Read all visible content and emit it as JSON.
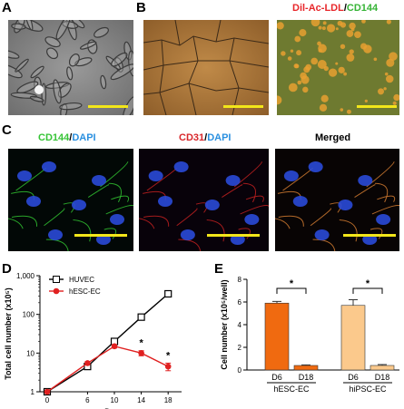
{
  "panel_labels": {
    "a": "A",
    "b": "B",
    "c": "C",
    "d": "D",
    "e": "E"
  },
  "titles": {
    "b_right": {
      "red": "Dil-Ac-LDL",
      "slash": "/",
      "green": "CD144"
    },
    "c1": {
      "green": "CD144",
      "slash": "/",
      "blue": "DAPI"
    },
    "c2": {
      "red": "CD31",
      "slash": "/",
      "blue": "DAPI"
    },
    "c3": "Merged"
  },
  "colors": {
    "scale_bar": "#f2e61a",
    "huvec": "#000000",
    "hesc": "#e02020",
    "d6_hesc": "#f06a10",
    "d6_hipsc": "#fbc98c",
    "d18": "#f06a10"
  },
  "chart_data": [
    {
      "type": "line",
      "x": [
        0,
        6,
        10,
        14,
        18
      ],
      "xlabel": "Days",
      "ylabel": "Total cell number (x10⁵)",
      "yscale": "log",
      "ylim": [
        1,
        1000
      ],
      "yticks": [
        "1",
        "10",
        "100",
        "1,000"
      ],
      "xticks": [
        "0",
        "6",
        "10",
        "14",
        "18"
      ],
      "legend": "top-left",
      "series": [
        {
          "name": "HUVEC",
          "values": [
            1,
            4.5,
            20,
            85,
            340
          ],
          "marker": "open-square",
          "color": "#000000"
        },
        {
          "name": "hESC-EC",
          "values": [
            1,
            5.5,
            15,
            10,
            4.5
          ],
          "errors": [
            0,
            0.5,
            1.5,
            1.5,
            1.0
          ],
          "marker": "filled-circle",
          "color": "#e02020"
        }
      ],
      "annotations": [
        {
          "x": 14,
          "text": "*"
        },
        {
          "x": 18,
          "text": "*"
        }
      ]
    },
    {
      "type": "bar",
      "ylabel": "Cell number (x10⁵/well)",
      "ylim": [
        0,
        8
      ],
      "yticks": [
        "0",
        "2",
        "4",
        "6",
        "8"
      ],
      "groups": [
        {
          "name": "hESC-EC",
          "categories": [
            "D6",
            "D18"
          ],
          "values": [
            5.9,
            0.4
          ],
          "errors": [
            0.15,
            0.05
          ]
        },
        {
          "name": "hiPSC-EC",
          "categories": [
            "D6",
            "D18"
          ],
          "values": [
            5.7,
            0.4
          ],
          "errors": [
            0.5,
            0.08
          ]
        }
      ],
      "annotations": [
        {
          "group": "hESC-EC",
          "text": "*"
        },
        {
          "group": "hiPSC-EC",
          "text": "*"
        }
      ]
    }
  ]
}
